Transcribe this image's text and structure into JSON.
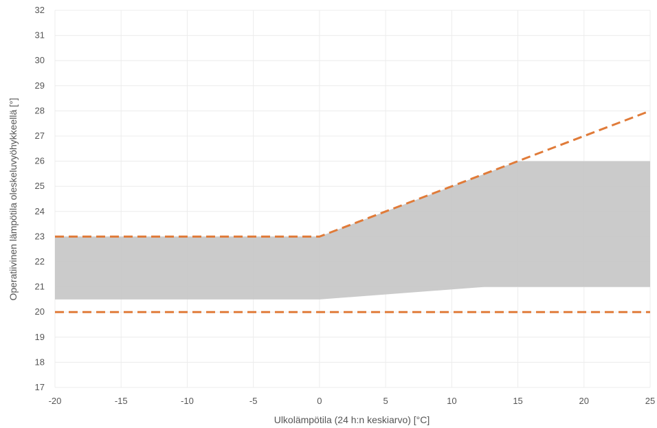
{
  "chart_data": {
    "type": "area",
    "xlabel": "Ulkolämpötila (24 h:n keskiarvo) [°C]",
    "ylabel": "Operatiivinen lämpötila oleskeluvyöhykkeellä [°]",
    "xlim": [
      -20,
      25
    ],
    "ylim": [
      17,
      32
    ],
    "x_ticks": [
      -20,
      -15,
      -10,
      -5,
      0,
      5,
      10,
      15,
      20,
      25
    ],
    "y_ticks": [
      17,
      18,
      19,
      20,
      21,
      22,
      23,
      24,
      25,
      26,
      27,
      28,
      29,
      30,
      31,
      32
    ],
    "grid": true,
    "band": {
      "color": "#c8c8c8",
      "upper": [
        [
          -20,
          23
        ],
        [
          0,
          23
        ],
        [
          15,
          26
        ],
        [
          25,
          26
        ]
      ],
      "lower": [
        [
          -20,
          20.5
        ],
        [
          0,
          20.5
        ],
        [
          12.5,
          21
        ],
        [
          25,
          21
        ]
      ]
    },
    "lines": [
      {
        "style": "dashed",
        "color": "#e07b39",
        "points": [
          [
            -20,
            23
          ],
          [
            0,
            23
          ],
          [
            25,
            28
          ]
        ]
      },
      {
        "style": "dashed",
        "color": "#e07b39",
        "points": [
          [
            -20,
            20
          ],
          [
            25,
            20
          ]
        ]
      }
    ]
  }
}
